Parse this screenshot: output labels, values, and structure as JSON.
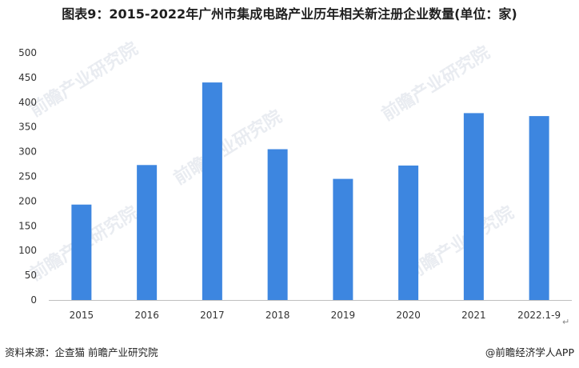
{
  "title": "图表9：2015-2022年广州市集成电路产业历年相关新注册企业数量(单位：家)",
  "source": "资料来源：企查猫 前瞻产业研究院",
  "credit": "@前瞻经济学人APP",
  "return_mark": "↵",
  "watermark": "前瞻产业研究院",
  "colors": {
    "bar": "#3d86e0",
    "axis": "#bfbfbf",
    "tick_text": "#333333"
  },
  "chart_data": {
    "type": "bar",
    "categories": [
      "2015",
      "2016",
      "2017",
      "2018",
      "2019",
      "2020",
      "2021",
      "2022.1-9"
    ],
    "values": [
      193,
      273,
      440,
      305,
      245,
      272,
      378,
      372
    ],
    "ylim": [
      0,
      500
    ],
    "yticks": [
      0,
      50,
      100,
      150,
      200,
      250,
      300,
      350,
      400,
      450,
      500
    ],
    "xlabel": "",
    "ylabel": "",
    "grid": false
  }
}
